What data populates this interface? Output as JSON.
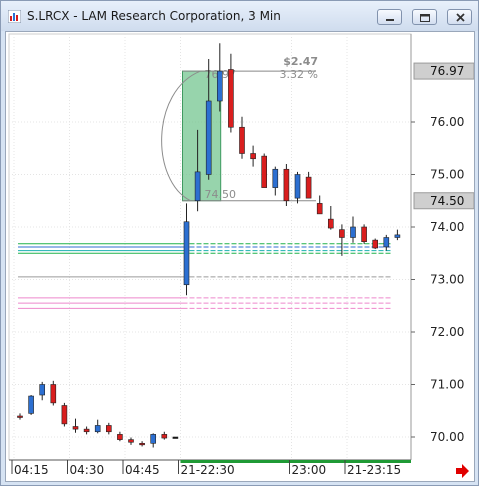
{
  "window": {
    "title": "S.LRCX - LAM Research Corporation, 3 Min",
    "controls": [
      "minimize",
      "restore",
      "close"
    ]
  },
  "chart_data": {
    "type": "candlestick",
    "symbol": "S.LRCX",
    "interval": "3 Min",
    "y_ticks": [
      "76.00",
      "75.00",
      "74.00",
      "73.00",
      "72.00",
      "71.00",
      "70.00"
    ],
    "y_tick_values": [
      76,
      75,
      74,
      73,
      72,
      71,
      70
    ],
    "ylim": [
      69.6,
      77.6
    ],
    "x_ticks": [
      "04:15",
      "04:30",
      "04:45",
      "21-22:30",
      "23:00",
      "21-23:15"
    ],
    "x_tick_index": [
      0,
      5,
      10,
      15,
      25,
      30
    ],
    "price_tags": [
      {
        "label": "76.97",
        "value": 76.97
      },
      {
        "label": "74.50",
        "value": 74.5
      }
    ],
    "measure": {
      "change": "$2.47",
      "percent": "3.32 %",
      "high_label": "76.97",
      "low_label": "74.50",
      "high": 76.97,
      "low": 74.5,
      "start_index": 15,
      "end_index": 18
    },
    "levels": [
      {
        "value": 73.68,
        "color": "#21b24a"
      },
      {
        "value": 73.62,
        "color": "#2f6fd0"
      },
      {
        "value": 73.55,
        "color": "#1ab0b0"
      },
      {
        "value": 73.5,
        "color": "#21b24a"
      },
      {
        "value": 73.05,
        "color": "#9a9a9a"
      },
      {
        "value": 72.65,
        "color": "#ee88cc"
      },
      {
        "value": 72.55,
        "color": "#ee88cc"
      },
      {
        "value": 72.45,
        "color": "#ee88cc"
      }
    ],
    "colors": {
      "up": "#2c6fd1",
      "down": "#d91e1e",
      "measure_fill": "#74c590",
      "grid": "#e4e4e4"
    },
    "candles": [
      {
        "o": 70.4,
        "h": 70.45,
        "l": 70.33,
        "c": 70.38
      },
      {
        "o": 70.45,
        "h": 70.8,
        "l": 70.42,
        "c": 70.78
      },
      {
        "o": 70.8,
        "h": 71.05,
        "l": 70.7,
        "c": 71.0
      },
      {
        "o": 71.0,
        "h": 71.07,
        "l": 70.6,
        "c": 70.65
      },
      {
        "o": 70.6,
        "h": 70.65,
        "l": 70.2,
        "c": 70.25
      },
      {
        "o": 70.2,
        "h": 70.35,
        "l": 70.08,
        "c": 70.15
      },
      {
        "o": 70.15,
        "h": 70.2,
        "l": 70.05,
        "c": 70.1
      },
      {
        "o": 70.1,
        "h": 70.33,
        "l": 70.07,
        "c": 70.22
      },
      {
        "o": 70.22,
        "h": 70.27,
        "l": 70.05,
        "c": 70.1
      },
      {
        "o": 70.05,
        "h": 70.1,
        "l": 69.92,
        "c": 69.95
      },
      {
        "o": 69.95,
        "h": 69.99,
        "l": 69.85,
        "c": 69.9
      },
      {
        "o": 69.88,
        "h": 69.92,
        "l": 69.82,
        "c": 69.87
      },
      {
        "o": 69.88,
        "h": 70.07,
        "l": 69.8,
        "c": 70.05
      },
      {
        "o": 70.05,
        "h": 70.1,
        "l": 69.95,
        "c": 69.98
      },
      {
        "o": 70.0,
        "h": 70.0,
        "l": 70.0,
        "c": 70.0
      },
      {
        "o": 72.9,
        "h": 74.45,
        "l": 72.7,
        "c": 74.1
      },
      {
        "o": 74.5,
        "h": 75.85,
        "l": 74.3,
        "c": 75.05
      },
      {
        "o": 75.0,
        "h": 77.2,
        "l": 74.9,
        "c": 76.4
      },
      {
        "o": 76.4,
        "h": 77.5,
        "l": 76.2,
        "c": 76.97
      },
      {
        "o": 77.0,
        "h": 77.3,
        "l": 75.8,
        "c": 75.9
      },
      {
        "o": 75.9,
        "h": 76.1,
        "l": 75.3,
        "c": 75.4
      },
      {
        "o": 75.4,
        "h": 75.55,
        "l": 75.15,
        "c": 75.3
      },
      {
        "o": 75.35,
        "h": 75.4,
        "l": 74.75,
        "c": 74.75
      },
      {
        "o": 74.75,
        "h": 75.15,
        "l": 74.6,
        "c": 75.1
      },
      {
        "o": 75.1,
        "h": 75.2,
        "l": 74.4,
        "c": 74.5
      },
      {
        "o": 74.55,
        "h": 75.05,
        "l": 74.45,
        "c": 75.0
      },
      {
        "o": 74.95,
        "h": 75.05,
        "l": 74.55,
        "c": 74.55
      },
      {
        "o": 74.45,
        "h": 74.6,
        "l": 74.25,
        "c": 74.25
      },
      {
        "o": 74.15,
        "h": 74.4,
        "l": 73.95,
        "c": 73.98
      },
      {
        "o": 73.95,
        "h": 74.05,
        "l": 73.45,
        "c": 73.8
      },
      {
        "o": 73.8,
        "h": 74.2,
        "l": 73.7,
        "c": 74.0
      },
      {
        "o": 74.0,
        "h": 74.05,
        "l": 73.68,
        "c": 73.72
      },
      {
        "o": 73.75,
        "h": 73.78,
        "l": 73.58,
        "c": 73.6
      },
      {
        "o": 73.62,
        "h": 73.85,
        "l": 73.55,
        "c": 73.8
      },
      {
        "o": 73.8,
        "h": 73.95,
        "l": 73.75,
        "c": 73.85
      }
    ]
  }
}
